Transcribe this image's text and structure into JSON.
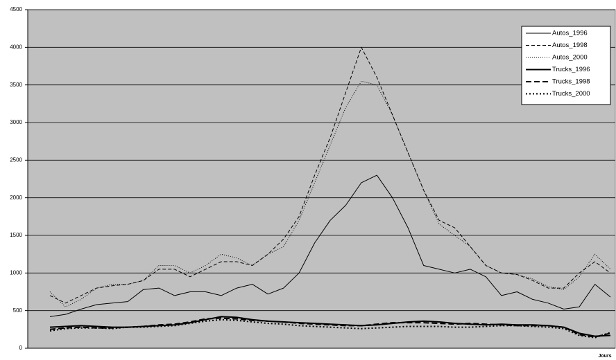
{
  "chart_data": {
    "type": "line",
    "x_label": "Jours",
    "categories": [
      null,
      null,
      null,
      null,
      null,
      null,
      null,
      null,
      null,
      null,
      null,
      null,
      null,
      null,
      null,
      null,
      null,
      null,
      null,
      null,
      null,
      null,
      null,
      null,
      null,
      null,
      null,
      null,
      null,
      null,
      null,
      null,
      null,
      null,
      null,
      null,
      null
    ],
    "ylim": [
      0,
      4500
    ],
    "yticks": [
      0,
      500,
      1000,
      1500,
      2000,
      2500,
      3000,
      3500,
      4000,
      4500
    ],
    "grid": true,
    "legend": "top-right",
    "background": "#c0c0c0",
    "series": [
      {
        "name": "Autos_1996",
        "color": "#000000",
        "style": "solid",
        "width": 1,
        "values": [
          420,
          450,
          520,
          580,
          600,
          620,
          780,
          800,
          700,
          750,
          750,
          700,
          800,
          850,
          720,
          800,
          1000,
          1400,
          1700,
          1900,
          2200,
          2300,
          2000,
          1600,
          1100,
          1050,
          1000,
          1050,
          950,
          700,
          750,
          650,
          600,
          520,
          550,
          850,
          680
        ]
      },
      {
        "name": "Autos_1998",
        "color": "#000000",
        "style": "dashed",
        "width": 1,
        "values": [
          700,
          600,
          700,
          800,
          830,
          850,
          900,
          1050,
          1050,
          950,
          1050,
          1150,
          1150,
          1100,
          1250,
          1450,
          1750,
          2300,
          2800,
          3400,
          4000,
          3600,
          3100,
          2600,
          2100,
          1700,
          1600,
          1350,
          1100,
          1000,
          980,
          900,
          800,
          800,
          1000,
          1150,
          1000
        ]
      },
      {
        "name": "Autos_2000",
        "color": "#000000",
        "style": "dotted",
        "width": 1,
        "values": [
          750,
          550,
          650,
          800,
          850,
          850,
          900,
          1100,
          1100,
          1000,
          1100,
          1250,
          1200,
          1100,
          1250,
          1350,
          1700,
          2200,
          2700,
          3200,
          3550,
          3500,
          3100,
          2600,
          2100,
          1650,
          1500,
          1350,
          1100,
          1000,
          980,
          920,
          820,
          780,
          950,
          1250,
          1050
        ]
      },
      {
        "name": "Trucks_1996",
        "color": "#000000",
        "style": "solid",
        "width": 2,
        "values": [
          280,
          290,
          300,
          290,
          280,
          280,
          290,
          300,
          310,
          340,
          380,
          420,
          410,
          380,
          360,
          350,
          340,
          330,
          320,
          310,
          300,
          310,
          330,
          350,
          360,
          350,
          330,
          320,
          310,
          320,
          310,
          310,
          300,
          280,
          200,
          160,
          170
        ]
      },
      {
        "name": "Trucks_1998",
        "color": "#000000",
        "style": "dashed",
        "width": 2,
        "values": [
          250,
          270,
          280,
          270,
          270,
          280,
          290,
          310,
          320,
          350,
          390,
          400,
          390,
          370,
          360,
          350,
          330,
          320,
          310,
          300,
          300,
          320,
          340,
          340,
          340,
          330,
          320,
          330,
          320,
          310,
          300,
          300,
          300,
          280,
          180,
          150,
          200
        ]
      },
      {
        "name": "Trucks_2000",
        "color": "#000000",
        "style": "dotted",
        "width": 2,
        "values": [
          230,
          260,
          270,
          270,
          260,
          280,
          280,
          290,
          300,
          330,
          360,
          380,
          370,
          350,
          330,
          320,
          300,
          290,
          280,
          270,
          260,
          270,
          280,
          290,
          290,
          290,
          280,
          280,
          290,
          300,
          300,
          290,
          280,
          260,
          170,
          140,
          210
        ]
      }
    ]
  }
}
